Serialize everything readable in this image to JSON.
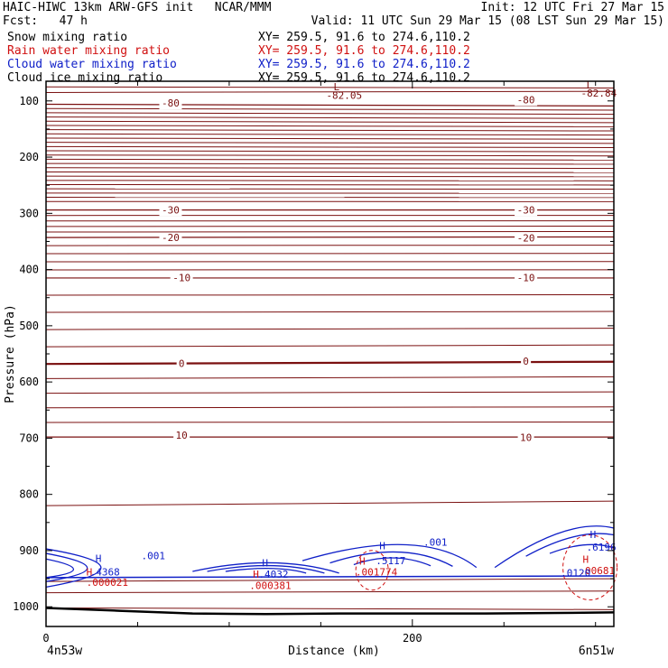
{
  "header": {
    "model_line": "HAIC-HIWC 13km ARW-GFS init   NCAR/MMM",
    "init_line": "Init: 12 UTC Fri 27 Mar 15",
    "fcst_line": "Fcst:   47 h",
    "valid_line": "Valid: 11 UTC Sun 29 Mar 15 (08 LST Sun 29 Mar 15)"
  },
  "fields": [
    {
      "label": "Snow mixing ratio",
      "xy": "XY= 259.5, 91.6 to 274.6,110.2",
      "color": "#000000"
    },
    {
      "label": "Rain water mixing ratio",
      "xy": "XY= 259.5, 91.6 to 274.6,110.2",
      "color": "#d01010"
    },
    {
      "label": "Cloud water mixing ratio",
      "xy": "XY= 259.5, 91.6 to 274.6,110.2",
      "color": "#1020c8"
    },
    {
      "label": "Cloud ice mixing ratio",
      "xy": "XY= 259.5, 91.6 to 274.6,110.2",
      "color": "#000000"
    }
  ],
  "chart_data": {
    "type": "contour-cross-section",
    "xlabel": "Distance (km)",
    "ylabel": "Pressure (hPa)",
    "xlim": [
      0,
      310
    ],
    "ylim": [
      1035,
      65
    ],
    "x_ticks": [
      0,
      200
    ],
    "y_ticks": [
      100,
      200,
      300,
      400,
      500,
      600,
      700,
      800,
      900,
      1000
    ],
    "left_endpoint": "4n53w",
    "right_endpoint": "6n51w",
    "colors": {
      "temperature": "#7a1010",
      "terrain": "#000000",
      "cloud_water": "#1020c8",
      "rain": "#d01010"
    },
    "temperature_contours": [
      {
        "level": -80,
        "label": "-80",
        "p": [
          106,
          109
        ]
      },
      {
        "level": -30,
        "label": "-30",
        "p": [
          294,
          294
        ]
      },
      {
        "level": -20,
        "label": "-20",
        "p": [
          343,
          342
        ]
      },
      {
        "level": -10,
        "label": "-10",
        "p": [
          415,
          415
        ]
      },
      {
        "level": 0,
        "label": "0",
        "p": [
          568,
          564
        ]
      },
      {
        "level": 10,
        "label": "10",
        "p": [
          698,
          698
        ]
      }
    ],
    "temperature_labels": [
      {
        "text": "-80",
        "x": 68,
        "p": 110
      },
      {
        "text": "-80",
        "x": 262,
        "p": 104
      },
      {
        "text": "-30",
        "x": 68,
        "p": 300
      },
      {
        "text": "-30",
        "x": 262,
        "p": 300
      },
      {
        "text": "-20",
        "x": 68,
        "p": 349
      },
      {
        "text": "-20",
        "x": 262,
        "p": 350
      },
      {
        "text": "-10",
        "x": 74,
        "p": 421
      },
      {
        "text": "-10",
        "x": 262,
        "p": 421
      },
      {
        "text": "0",
        "x": 74,
        "p": 573
      },
      {
        "text": "0",
        "x": 262,
        "p": 569
      },
      {
        "text": "10",
        "x": 74,
        "p": 701
      },
      {
        "text": "10",
        "x": 262,
        "p": 705
      }
    ],
    "extrema_labels": [
      {
        "text": "L",
        "x": 157,
        "p": 81,
        "color": "#7a1010"
      },
      {
        "text": "-82.05",
        "x": 153,
        "p": 96,
        "color": "#7a1010"
      },
      {
        "text": "L",
        "x": 295,
        "p": 78,
        "color": "#7a1010"
      },
      {
        "text": "-82.84",
        "x": 292,
        "p": 92,
        "color": "#7a1010"
      },
      {
        "text": "H",
        "x": 27,
        "p": 920,
        "color": "#1020c8"
      },
      {
        "text": ".001",
        "x": 52,
        "p": 915,
        "color": "#1020c8"
      },
      {
        "text": "H",
        "x": 22,
        "p": 944,
        "color": "#d01010"
      },
      {
        "text": ".4368",
        "x": 24,
        "p": 944,
        "color": "#1020c8"
      },
      {
        "text": ".000021",
        "x": 22,
        "p": 963,
        "color": "#d01010"
      },
      {
        "text": "H",
        "x": 118,
        "p": 928,
        "color": "#1020c8"
      },
      {
        "text": "H",
        "x": 113,
        "p": 948,
        "color": "#d01010"
      },
      {
        "text": ".4032",
        "x": 116,
        "p": 948,
        "color": "#1020c8"
      },
      {
        "text": ".000381",
        "x": 111,
        "p": 968,
        "color": "#d01010"
      },
      {
        "text": "H",
        "x": 182,
        "p": 898,
        "color": "#1020c8"
      },
      {
        "text": ".001",
        "x": 206,
        "p": 891,
        "color": "#1020c8"
      },
      {
        "text": "H",
        "x": 171,
        "p": 925,
        "color": "#d01010"
      },
      {
        "text": ".5117",
        "x": 180,
        "p": 924,
        "color": "#1020c8"
      },
      {
        "text": ".001774",
        "x": 169,
        "p": 944,
        "color": "#d01010"
      },
      {
        "text": "H",
        "x": 297,
        "p": 878,
        "color": "#1020c8"
      },
      {
        "text": ".6196",
        "x": 295,
        "p": 900,
        "color": "#1020c8"
      },
      {
        "text": "H",
        "x": 293,
        "p": 922,
        "color": "#d01010"
      },
      {
        "text": ".00681",
        "x": 291,
        "p": 942,
        "color": "#d01010"
      },
      {
        "text": ".0120",
        "x": 281,
        "p": 946,
        "color": "#1020c8"
      }
    ]
  }
}
